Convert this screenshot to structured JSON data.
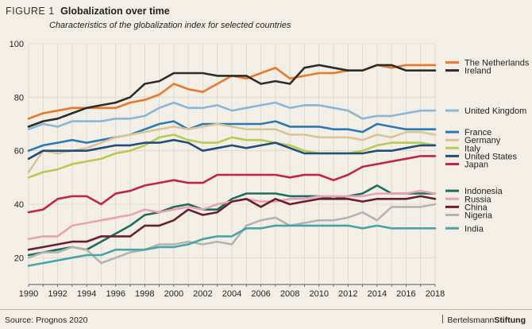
{
  "figure": {
    "label": "FIGURE 1",
    "title": "Globalization over time",
    "subtitle": "Characteristics of the globalization index for selected countries"
  },
  "source": "Source: Prognos 2020",
  "brand": {
    "regular": "Bertelsmann",
    "bold": "Stiftung"
  },
  "chart_data": {
    "type": "line",
    "title": "Globalization over time",
    "subtitle": "Characteristics of the globalization index for selected countries",
    "xlabel": "",
    "ylabel": "",
    "xlim": [
      1990,
      2018
    ],
    "ylim": [
      10,
      100
    ],
    "xticks": [
      1990,
      1992,
      1994,
      1996,
      1998,
      2000,
      2002,
      2004,
      2006,
      2008,
      2010,
      2012,
      2014,
      2016,
      2018
    ],
    "yticks": [
      20,
      40,
      60,
      80,
      100
    ],
    "grid": true,
    "legend": "right",
    "x": [
      1990,
      1991,
      1992,
      1993,
      1994,
      1995,
      1996,
      1997,
      1998,
      1999,
      2000,
      2001,
      2002,
      2003,
      2004,
      2005,
      2006,
      2007,
      2008,
      2009,
      2010,
      2011,
      2012,
      2013,
      2014,
      2015,
      2016,
      2017,
      2018
    ],
    "series": [
      {
        "name": "The Netherlands",
        "color": "#e8792b",
        "values": [
          72,
          74,
          75,
          76,
          76,
          76,
          76,
          78,
          79,
          81,
          85,
          83,
          82,
          85,
          88,
          87,
          89,
          91,
          87,
          88,
          89,
          89,
          90,
          90,
          92,
          91,
          92,
          92,
          92
        ]
      },
      {
        "name": "Ireland",
        "color": "#2c2c2c",
        "values": [
          69,
          71,
          72,
          74,
          76,
          77,
          78,
          80,
          85,
          86,
          89,
          89,
          89,
          88,
          88,
          88,
          85,
          86,
          85,
          91,
          92,
          91,
          90,
          90,
          92,
          92,
          90,
          90,
          90
        ]
      },
      {
        "name": "United Kingdom",
        "color": "#8db6d5",
        "values": [
          68,
          70,
          69,
          71,
          71,
          71,
          72,
          72,
          73,
          76,
          78,
          76,
          76,
          77,
          75,
          76,
          77,
          78,
          76,
          77,
          77,
          76,
          75,
          72,
          73,
          73,
          74,
          75,
          75
        ]
      },
      {
        "name": "France",
        "color": "#2a79b3",
        "values": [
          60,
          62,
          63,
          64,
          63,
          64,
          65,
          66,
          68,
          70,
          71,
          68,
          70,
          70,
          70,
          70,
          70,
          71,
          69,
          69,
          69,
          68,
          68,
          67,
          70,
          69,
          68,
          68,
          68
        ]
      },
      {
        "name": "Germany",
        "color": "#d7c597",
        "values": [
          52,
          60,
          59,
          60,
          61,
          63,
          65,
          66,
          67,
          68,
          69,
          68,
          69,
          70,
          69,
          68,
          68,
          68,
          66,
          66,
          65,
          65,
          65,
          64,
          66,
          65,
          67,
          67,
          66
        ]
      },
      {
        "name": "Italy",
        "color": "#b9c952",
        "values": [
          50,
          52,
          53,
          55,
          56,
          57,
          59,
          60,
          62,
          65,
          66,
          64,
          63,
          63,
          65,
          64,
          64,
          63,
          62,
          60,
          59,
          59,
          59,
          60,
          62,
          63,
          63,
          63,
          62
        ]
      },
      {
        "name": "United States",
        "color": "#1f4e79",
        "values": [
          57,
          60,
          60,
          60,
          60,
          61,
          62,
          62,
          63,
          63,
          64,
          63,
          60,
          61,
          62,
          61,
          62,
          63,
          61,
          59,
          59,
          59,
          59,
          59,
          60,
          60,
          61,
          62,
          62
        ]
      },
      {
        "name": "Japan",
        "color": "#c0244c",
        "values": [
          37,
          38,
          42,
          43,
          43,
          40,
          44,
          45,
          47,
          48,
          49,
          48,
          48,
          51,
          51,
          51,
          51,
          51,
          50,
          51,
          51,
          49,
          51,
          54,
          55,
          56,
          57,
          58,
          58
        ]
      },
      {
        "name": "Indonesia",
        "color": "#1c6d5f",
        "values": [
          21,
          22,
          23,
          24,
          23,
          26,
          29,
          32,
          36,
          37,
          39,
          40,
          38,
          38,
          42,
          44,
          44,
          44,
          43,
          43,
          43,
          42,
          43,
          44,
          47,
          44,
          44,
          44,
          44
        ]
      },
      {
        "name": "Russia",
        "color": "#e8a3b3",
        "values": [
          27,
          28,
          28,
          32,
          33,
          34,
          35,
          36,
          38,
          37,
          38,
          39,
          38,
          40,
          41,
          42,
          41,
          41,
          42,
          42,
          43,
          43,
          43,
          43,
          44,
          44,
          44,
          45,
          44
        ]
      },
      {
        "name": "China",
        "color": "#6b1e32",
        "values": [
          23,
          24,
          25,
          26,
          26,
          28,
          28,
          28,
          32,
          32,
          34,
          38,
          36,
          37,
          41,
          42,
          39,
          42,
          40,
          41,
          42,
          42,
          42,
          41,
          42,
          42,
          42,
          43,
          42
        ]
      },
      {
        "name": "Nigeria",
        "color": "#b3b3b3",
        "values": [
          20,
          22,
          22,
          24,
          23,
          18,
          20,
          22,
          23,
          25,
          25,
          26,
          25,
          26,
          25,
          32,
          34,
          35,
          32,
          33,
          34,
          34,
          35,
          37,
          34,
          39,
          39,
          39,
          40
        ]
      },
      {
        "name": "India",
        "color": "#4aa3a6",
        "values": [
          17,
          18,
          19,
          20,
          21,
          21,
          23,
          23,
          23,
          24,
          24,
          25,
          27,
          28,
          28,
          31,
          31,
          32,
          32,
          32,
          32,
          32,
          32,
          31,
          32,
          31,
          31,
          31,
          31
        ]
      }
    ],
    "legend_order": [
      {
        "name": "The Netherlands",
        "at": 93
      },
      {
        "name": "Ireland",
        "at": 90
      },
      {
        "name": "United Kingdom",
        "at": 75
      },
      {
        "name": "France",
        "at": 67
      },
      {
        "name": "Germany",
        "at": 64
      },
      {
        "name": "Italy",
        "at": 61
      },
      {
        "name": "United States",
        "at": 58
      },
      {
        "name": "Japan",
        "at": 55
      },
      {
        "name": "Indonesia",
        "at": 45
      },
      {
        "name": "Russia",
        "at": 42
      },
      {
        "name": "China",
        "at": 39
      },
      {
        "name": "Nigeria",
        "at": 36
      },
      {
        "name": "India",
        "at": 31
      }
    ]
  }
}
